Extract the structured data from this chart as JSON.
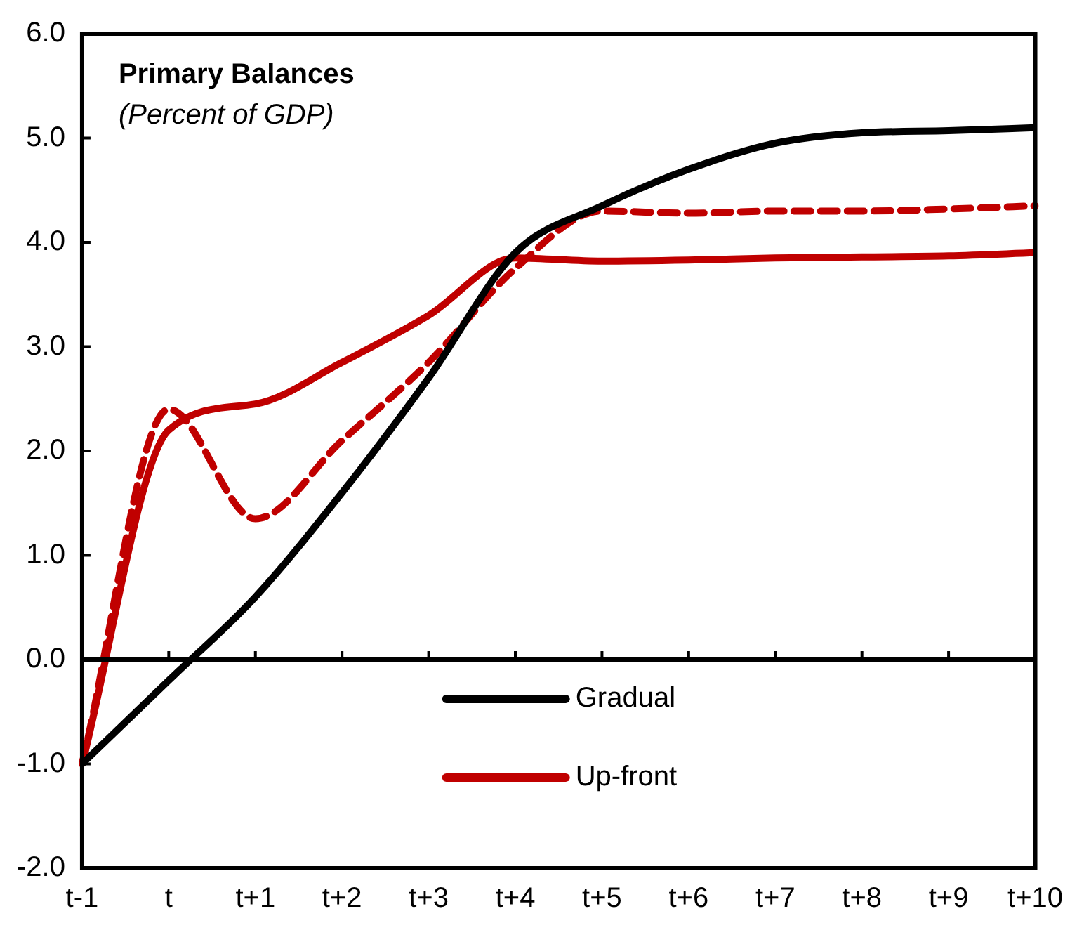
{
  "chart_data": {
    "type": "line",
    "title": "Primary Balances",
    "subtitle": "(Percent of GDP)",
    "categories": [
      "t-1",
      "t",
      "t+1",
      "t+2",
      "t+3",
      "t+4",
      "t+5",
      "t+6",
      "t+7",
      "t+8",
      "t+9",
      "t+10"
    ],
    "series": [
      {
        "name": "Gradual",
        "color": "#000000",
        "values": [
          -1.0,
          -0.2,
          0.6,
          1.6,
          2.7,
          3.9,
          4.35,
          4.7,
          4.95,
          5.05,
          5.07,
          5.1
        ]
      },
      {
        "name": "Up-front",
        "color": "#c00000",
        "values": [
          -1.0,
          2.2,
          2.45,
          2.85,
          3.3,
          3.85,
          3.82,
          3.83,
          3.85,
          3.86,
          3.87,
          3.9
        ]
      },
      {
        "color": "#c00000",
        "line_style": "dashed",
        "values": [
          -1.0,
          2.4,
          1.35,
          2.1,
          2.85,
          3.75,
          4.3,
          4.28,
          4.3,
          4.3,
          4.32,
          4.35
        ]
      }
    ],
    "ylim": [
      -2,
      6
    ],
    "yticks": [
      {
        "value": -2,
        "label": "-2.0"
      },
      {
        "value": -1,
        "label": "-1.0"
      },
      {
        "value": 0,
        "label": "0.0"
      },
      {
        "value": 1,
        "label": "1.0"
      },
      {
        "value": 2,
        "label": "2.0"
      },
      {
        "value": 3,
        "label": "3.0"
      },
      {
        "value": 4,
        "label": "4.0"
      },
      {
        "value": 5,
        "label": "5.0"
      },
      {
        "value": 6,
        "label": "6.0"
      }
    ],
    "ref_lines": [
      {
        "axis": "y",
        "value": 0
      }
    ],
    "grid": false,
    "legend": "bottom",
    "marker": "none",
    "line_style": "solid"
  }
}
